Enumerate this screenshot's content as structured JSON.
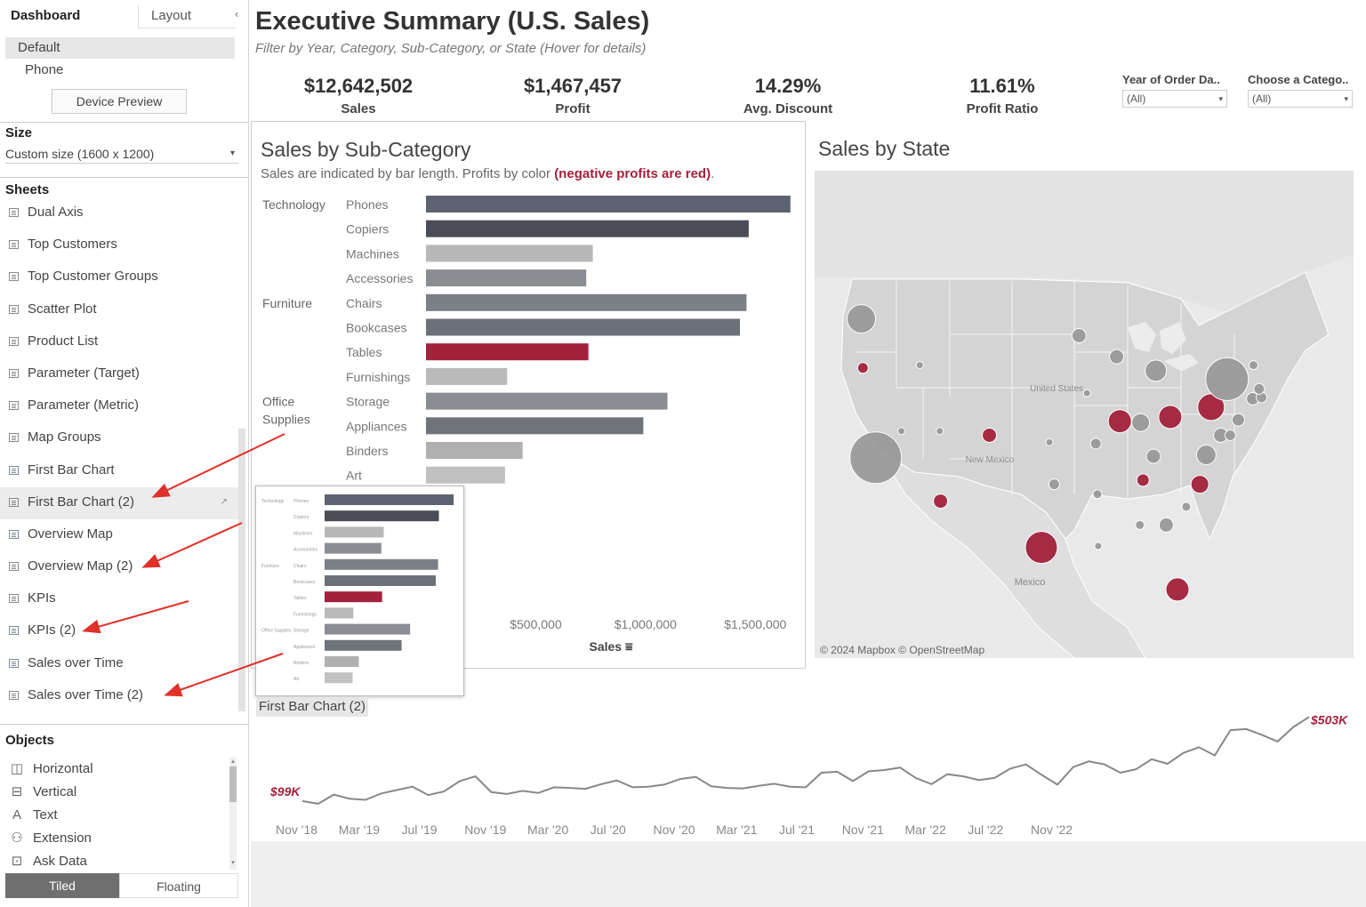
{
  "left_panel": {
    "tabs": {
      "dashboard": "Dashboard",
      "layout": "Layout"
    },
    "device_options": {
      "default": "Default",
      "phone": "Phone"
    },
    "device_preview_label": "Device Preview",
    "size": {
      "heading": "Size",
      "value": "Custom size (1600 x 1200)"
    },
    "sheets": {
      "heading": "Sheets",
      "items": [
        {
          "label": "Dual Axis",
          "icon": "worksheet-icon"
        },
        {
          "label": "Top Customers",
          "icon": "worksheet-icon"
        },
        {
          "label": "Top Customer Groups",
          "icon": "worksheet-icon"
        },
        {
          "label": "Scatter Plot",
          "icon": "worksheet-icon"
        },
        {
          "label": "Product List",
          "icon": "worksheet-icon"
        },
        {
          "label": "Parameter (Target)",
          "icon": "worksheet-icon"
        },
        {
          "label": "Parameter (Metric)",
          "icon": "worksheet-icon"
        },
        {
          "label": "Map Groups",
          "icon": "worksheet-icon"
        },
        {
          "label": "First Bar Chart",
          "icon": "used-sheet-icon"
        },
        {
          "label": "First Bar Chart (2)",
          "icon": "worksheet-icon",
          "selected": true
        },
        {
          "label": "Overview Map",
          "icon": "used-sheet-icon"
        },
        {
          "label": "Overview Map (2)",
          "icon": "worksheet-icon"
        },
        {
          "label": "KPIs",
          "icon": "worksheet-icon"
        },
        {
          "label": "KPIs (2)",
          "icon": "used-sheet-icon"
        },
        {
          "label": "Sales over Time",
          "icon": "used-sheet-icon"
        },
        {
          "label": "Sales over Time (2)",
          "icon": "worksheet-icon"
        }
      ]
    },
    "objects": {
      "heading": "Objects",
      "items": [
        {
          "label": "Horizontal",
          "icon": "horizontal-container-icon",
          "glyph": "◫"
        },
        {
          "label": "Vertical",
          "icon": "vertical-container-icon",
          "glyph": "⊟"
        },
        {
          "label": "Text",
          "icon": "text-icon",
          "glyph": "A"
        },
        {
          "label": "Extension",
          "icon": "extension-icon",
          "glyph": "⚇"
        },
        {
          "label": "Ask Data",
          "icon": "ask-data-icon",
          "glyph": "⊡"
        }
      ]
    },
    "mode_buttons": {
      "tiled": "Tiled",
      "floating": "Floating"
    }
  },
  "dashboard": {
    "title": "Executive Summary (U.S. Sales)",
    "subtitle": "Filter by Year, Category, Sub-Category, or State (Hover for details)",
    "kpis": [
      {
        "value": "$12,642,502",
        "label": "Sales"
      },
      {
        "value": "$1,467,457",
        "label": "Profit"
      },
      {
        "value": "14.29%",
        "label": "Avg. Discount"
      },
      {
        "value": "11.61%",
        "label": "Profit Ratio"
      }
    ],
    "filters": [
      {
        "label": "Year of Order Da..",
        "value": "(All)"
      },
      {
        "label": "Choose a Catego..",
        "value": "(All)"
      }
    ],
    "accent_color": "#a3213c"
  },
  "chart_data": [
    {
      "type": "bar",
      "title": "Sales by Sub-Category",
      "subtitle_prefix": "Sales are indicated by bar length. Profits by color",
      "subtitle_highlight": "(negative profits are red)",
      "subtitle_suffix": ".",
      "xlabel": "Sales",
      "xticks": [
        500000,
        1000000,
        1500000
      ],
      "xtick_labels": [
        "$500,000",
        "$1,000,000",
        "$1,500,000"
      ],
      "xlim": [
        0,
        1750000
      ],
      "groups": [
        {
          "name": "Technology",
          "items": [
            {
              "name": "Phones",
              "value": 1660000,
              "color": "#5d6270"
            },
            {
              "name": "Copiers",
              "value": 1470000,
              "color": "#4a4d57"
            },
            {
              "name": "Machines",
              "value": 760000,
              "color": "#b8b8b8"
            },
            {
              "name": "Accessories",
              "value": 730000,
              "color": "#8a8e93"
            }
          ]
        },
        {
          "name": "Furniture",
          "items": [
            {
              "name": "Chairs",
              "value": 1460000,
              "color": "#7b7f86"
            },
            {
              "name": "Bookcases",
              "value": 1430000,
              "color": "#6c7078"
            },
            {
              "name": "Tables",
              "value": 740000,
              "color": "#a3213c"
            },
            {
              "name": "Furnishings",
              "value": 370000,
              "color": "#b9b9b9"
            }
          ]
        },
        {
          "name": "Office Supplies",
          "items": [
            {
              "name": "Storage",
              "value": 1100000,
              "color": "#8a8e93"
            },
            {
              "name": "Appliances",
              "value": 990000,
              "color": "#6f737a"
            },
            {
              "name": "Binders",
              "value": 440000,
              "color": "#b0b0b0"
            },
            {
              "name": "Art",
              "value": 360000,
              "color": "#c1c1c1"
            }
          ]
        }
      ]
    },
    {
      "type": "scatter",
      "title": "Sales by State",
      "attribution": "© 2024 Mapbox © OpenStreetMap",
      "map_labels": [
        "Mexico",
        "United States",
        "New Mexico"
      ],
      "colors": {
        "positive": "#9a9a9a",
        "negative": "#a3213c"
      },
      "points": [
        {
          "lon": -121.5,
          "lat": 47.3,
          "size": 16,
          "neg": false
        },
        {
          "lon": -121.3,
          "lat": 43.8,
          "size": 6,
          "neg": true
        },
        {
          "lon": -119.7,
          "lat": 37.4,
          "size": 29,
          "neg": false
        },
        {
          "lon": -116.5,
          "lat": 39.3,
          "size": 4,
          "neg": false
        },
        {
          "lon": -114.2,
          "lat": 44.0,
          "size": 4,
          "neg": false
        },
        {
          "lon": -111.7,
          "lat": 39.3,
          "size": 4,
          "neg": false
        },
        {
          "lon": -111.6,
          "lat": 34.3,
          "size": 8,
          "neg": true
        },
        {
          "lon": -105.5,
          "lat": 39.0,
          "size": 8,
          "neg": true
        },
        {
          "lon": -99.0,
          "lat": 31.0,
          "size": 18,
          "neg": true
        },
        {
          "lon": -97.4,
          "lat": 35.5,
          "size": 6,
          "neg": false
        },
        {
          "lon": -98.0,
          "lat": 38.5,
          "size": 4,
          "neg": false
        },
        {
          "lon": -94.3,
          "lat": 46.1,
          "size": 8,
          "neg": false
        },
        {
          "lon": -93.3,
          "lat": 42.0,
          "size": 4,
          "neg": false
        },
        {
          "lon": -92.2,
          "lat": 38.4,
          "size": 6,
          "neg": false
        },
        {
          "lon": -92.0,
          "lat": 34.8,
          "size": 5,
          "neg": false
        },
        {
          "lon": -91.9,
          "lat": 31.1,
          "size": 4,
          "neg": false
        },
        {
          "lon": -89.6,
          "lat": 44.6,
          "size": 8,
          "neg": false
        },
        {
          "lon": -89.2,
          "lat": 40.0,
          "size": 13,
          "neg": true
        },
        {
          "lon": -86.6,
          "lat": 39.9,
          "size": 10,
          "neg": false
        },
        {
          "lon": -84.7,
          "lat": 43.6,
          "size": 12,
          "neg": false
        },
        {
          "lon": -85.0,
          "lat": 37.5,
          "size": 8,
          "neg": false
        },
        {
          "lon": -86.3,
          "lat": 35.8,
          "size": 7,
          "neg": true
        },
        {
          "lon": -86.7,
          "lat": 32.6,
          "size": 5,
          "neg": false
        },
        {
          "lon": -83.4,
          "lat": 32.6,
          "size": 8,
          "neg": false
        },
        {
          "lon": -82.9,
          "lat": 40.3,
          "size": 13,
          "neg": true
        },
        {
          "lon": -82.0,
          "lat": 28.0,
          "size": 13,
          "neg": true
        },
        {
          "lon": -80.9,
          "lat": 33.9,
          "size": 5,
          "neg": false
        },
        {
          "lon": -79.2,
          "lat": 35.5,
          "size": 10,
          "neg": true
        },
        {
          "lon": -77.8,
          "lat": 41.0,
          "size": 15,
          "neg": true
        },
        {
          "lon": -78.4,
          "lat": 37.6,
          "size": 11,
          "neg": false
        },
        {
          "lon": -75.8,
          "lat": 43.0,
          "size": 24,
          "neg": false
        },
        {
          "lon": -76.6,
          "lat": 39.0,
          "size": 8,
          "neg": false
        },
        {
          "lon": -74.4,
          "lat": 40.1,
          "size": 7,
          "neg": false
        },
        {
          "lon": -75.4,
          "lat": 39.0,
          "size": 6,
          "neg": false
        },
        {
          "lon": -72.6,
          "lat": 41.6,
          "size": 7,
          "neg": false
        },
        {
          "lon": -71.5,
          "lat": 41.7,
          "size": 6,
          "neg": false
        },
        {
          "lon": -71.8,
          "lat": 42.3,
          "size": 6,
          "neg": false
        },
        {
          "lon": -72.5,
          "lat": 44.0,
          "size": 5,
          "neg": false
        }
      ]
    },
    {
      "type": "line",
      "title": "",
      "start_label": "$99K",
      "end_label": "$503K",
      "xtick_labels": [
        "Nov '18",
        "Mar '19",
        "Jul '19",
        "Nov '19",
        "Mar '20",
        "Jul '20",
        "Nov '20",
        "Mar '21",
        "Jul '21",
        "Nov '21",
        "Mar '22",
        "Jul '22",
        "Nov '22"
      ],
      "xtick_months": [
        0,
        4,
        8,
        12,
        16,
        20,
        24,
        28,
        32,
        36,
        40,
        44,
        48
      ],
      "ylim": [
        60,
        530
      ],
      "values": [
        99,
        86,
        130,
        110,
        105,
        135,
        152,
        168,
        128,
        145,
        195,
        218,
        142,
        133,
        148,
        138,
        165,
        162,
        158,
        180,
        198,
        165,
        168,
        178,
        205,
        215,
        170,
        162,
        160,
        172,
        182,
        168,
        165,
        235,
        240,
        195,
        242,
        248,
        260,
        210,
        180,
        228,
        218,
        200,
        210,
        255,
        275,
        225,
        178,
        262,
        290,
        275,
        235,
        252,
        300,
        278,
        330,
        358,
        318,
        440,
        445,
        417,
        385,
        455,
        503
      ]
    },
    {
      "type": "bar",
      "title": "",
      "caption": "First Bar Chart (2)",
      "categories": [
        "Phones",
        "Copiers",
        "Machines",
        "Accessories",
        "Chairs",
        "Bookcases",
        "Tables",
        "Furnishings",
        "Storage",
        "Appliances",
        "Binders",
        "Art"
      ],
      "group_labels": [
        "Technology",
        "Furniture",
        "Office Supplies"
      ],
      "values": [
        1660000,
        1470000,
        760000,
        730000,
        1460000,
        1430000,
        740000,
        370000,
        1100000,
        990000,
        440000,
        360000
      ],
      "colors": [
        "#5d6270",
        "#4a4d57",
        "#b8b8b8",
        "#8a8e93",
        "#7b7f86",
        "#6c7078",
        "#a3213c",
        "#b9b9b9",
        "#8a8e93",
        "#6f737a",
        "#b0b0b0",
        "#c1c1c1"
      ],
      "xlim": [
        0,
        1750000
      ]
    }
  ]
}
